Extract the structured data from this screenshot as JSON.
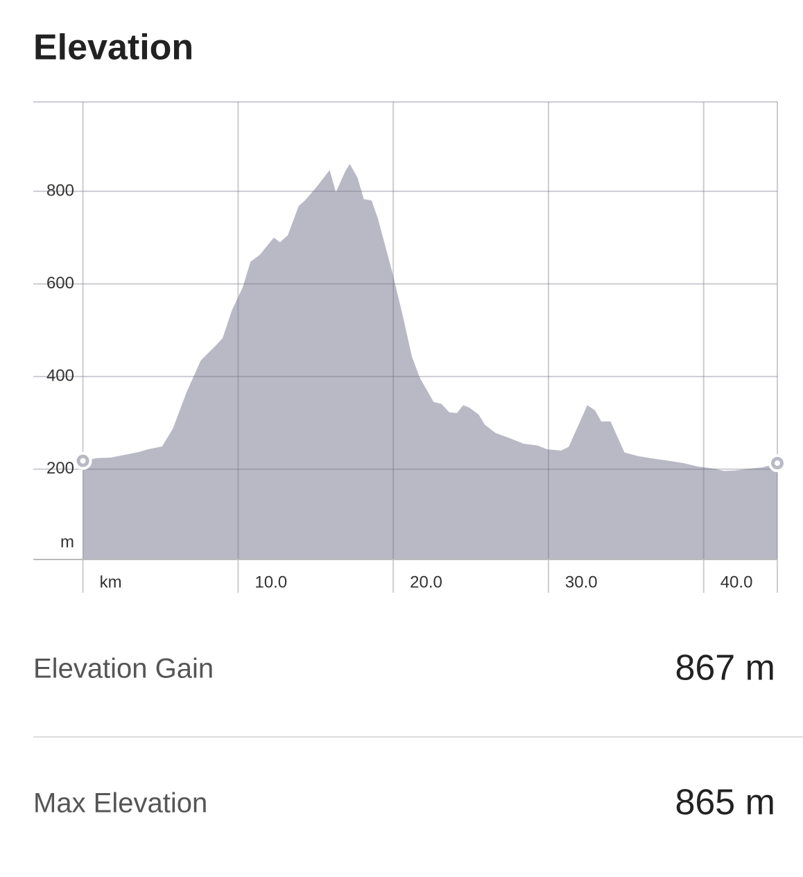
{
  "header": {
    "title": "Elevation"
  },
  "chart_data": {
    "type": "area",
    "color": "#b9b9c6",
    "x": [
      0,
      0.9,
      1.8,
      2.7,
      3.6,
      4.2,
      5.1,
      5.8,
      6.7,
      7.6,
      8.5,
      9.0,
      9.6,
      10.3,
      10.8,
      11.4,
      12.3,
      12.7,
      13.2,
      13.9,
      14.3,
      15.0,
      15.9,
      16.3,
      16.9,
      17.2,
      17.7,
      18.1,
      18.6,
      19.0,
      19.9,
      20.6,
      21.2,
      21.7,
      22.6,
      23.1,
      23.6,
      24.1,
      24.5,
      24.9,
      25.5,
      25.9,
      26.6,
      27.5,
      28.4,
      29.3,
      29.9,
      30.8,
      31.3,
      32.0,
      32.5,
      33.0,
      33.4,
      34.0,
      34.9,
      35.8,
      36.9,
      37.8,
      38.7,
      39.6,
      40.7,
      41.3,
      42.0,
      42.9,
      43.8,
      44.75
    ],
    "values": [
      218,
      224,
      225,
      231,
      237,
      243,
      249,
      288,
      368,
      435,
      465,
      483,
      543,
      593,
      648,
      663,
      700,
      690,
      705,
      768,
      780,
      807,
      846,
      798,
      843,
      859,
      829,
      783,
      780,
      742,
      630,
      533,
      443,
      398,
      345,
      341,
      323,
      321,
      338,
      333,
      318,
      296,
      278,
      267,
      255,
      251,
      243,
      240,
      248,
      300,
      338,
      327,
      303,
      303,
      236,
      228,
      222,
      218,
      213,
      206,
      201,
      196,
      197,
      201,
      204,
      213
    ],
    "xlim": [
      -3.2,
      44.75
    ],
    "ylim": [
      5,
      993
    ],
    "xticks": [
      {
        "value": 0,
        "label": "km"
      },
      {
        "value": 10,
        "label": "10.0"
      },
      {
        "value": 20,
        "label": "20.0"
      },
      {
        "value": 30,
        "label": "30.0"
      },
      {
        "value": 40,
        "label": "40.0"
      }
    ],
    "yticks": [
      200,
      400,
      600,
      800
    ],
    "y_unit": "m",
    "grid": true
  },
  "stats": [
    {
      "label": "Elevation Gain",
      "value": "867 m"
    },
    {
      "label": "Max Elevation",
      "value": "865 m"
    }
  ]
}
